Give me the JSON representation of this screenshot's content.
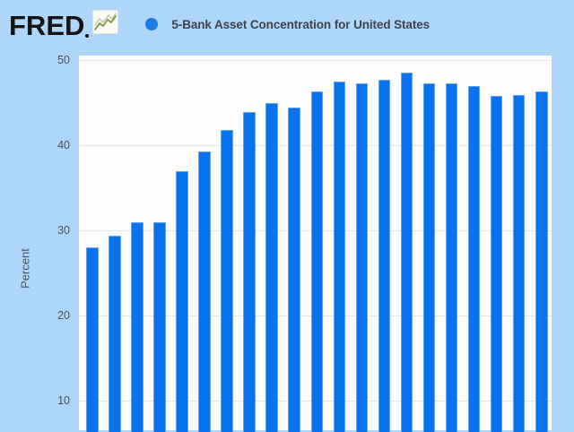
{
  "header": {
    "logo_text": "FRED",
    "legend": {
      "marker_color": "#1b7ce2",
      "label": "5-Bank Asset Concentration for United States"
    }
  },
  "y_axis": {
    "title": "Percent",
    "tick_labels": [
      "50",
      "40",
      "30",
      "20",
      "10"
    ]
  },
  "icons": {
    "fred_chart_icon": "line-chart-icon"
  },
  "colors": {
    "page_background": "#aed6fa",
    "plot_background": "#fefefe",
    "bar_fill": "#0b72ee",
    "gridline": "#e7e7e7",
    "logo_text": "#141414",
    "axis_text": "#47525e",
    "legend_text": "#3c4450"
  },
  "chart_data": {
    "type": "bar",
    "title": "5-Bank Asset Concentration for United States",
    "xlabel": "",
    "ylabel": "Percent",
    "y_ticks": [
      50,
      40,
      30,
      20,
      10
    ],
    "ylim": [
      0,
      50
    ],
    "grid": true,
    "legend_position": "top",
    "bar_color": "#0b72ee",
    "x_tick_labels_visible": false,
    "values": [
      28.0,
      29.4,
      30.9,
      31.0,
      36.9,
      39.3,
      41.8,
      43.9,
      45.0,
      44.4,
      46.3,
      47.5,
      47.3,
      47.7,
      48.5,
      47.3,
      47.3,
      47.0,
      45.8,
      45.9,
      46.3
    ]
  }
}
